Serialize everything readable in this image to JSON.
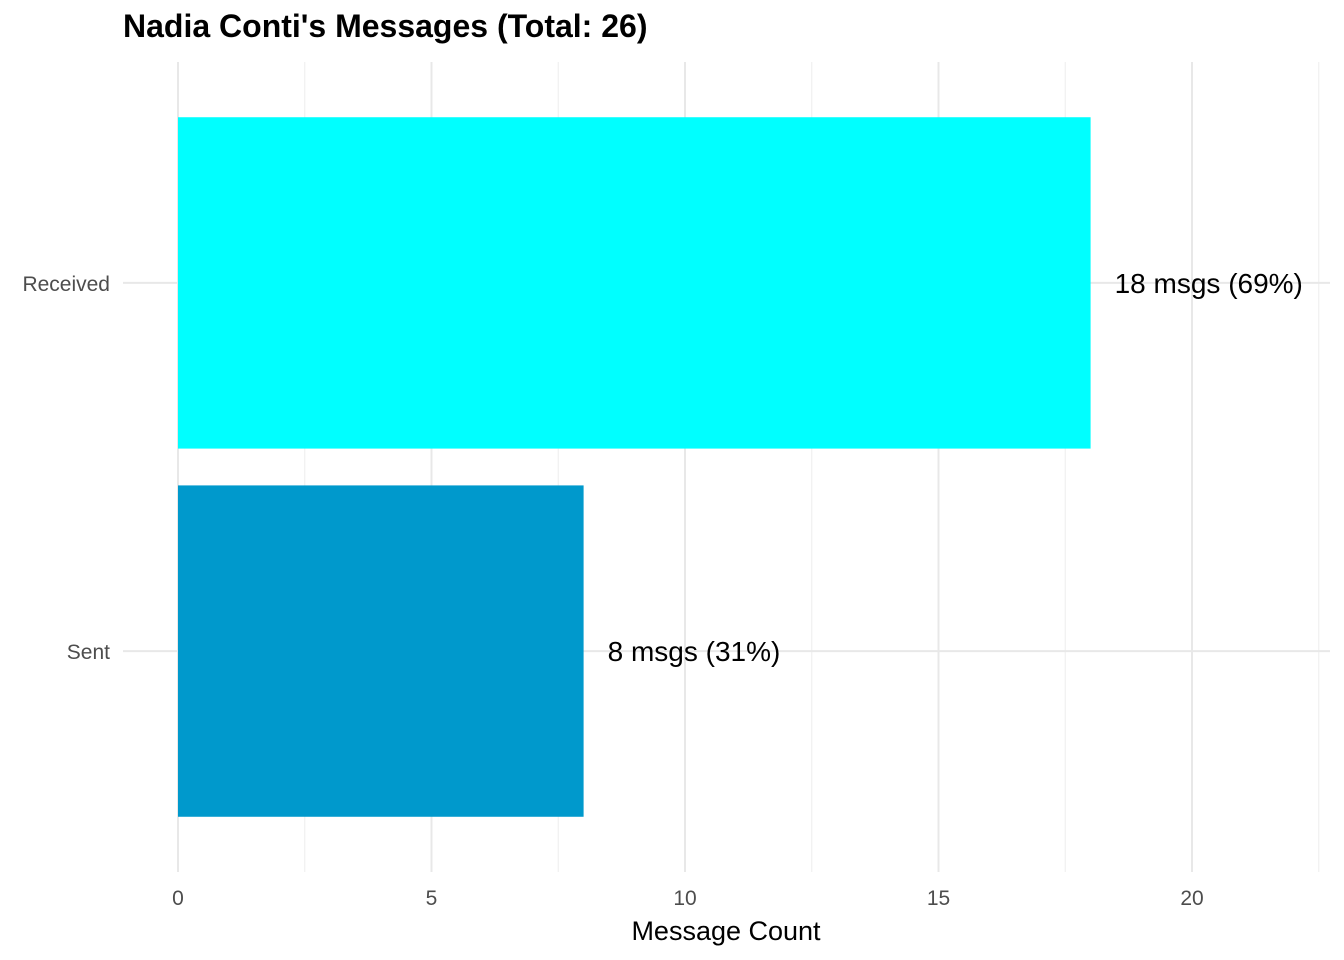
{
  "chart_data": {
    "type": "bar",
    "orientation": "horizontal",
    "title": "Nadia Conti's Messages (Total: 26)",
    "xlabel": "Message Count",
    "ylabel": "",
    "categories": [
      "Received",
      "Sent"
    ],
    "values": [
      18,
      8
    ],
    "data_labels": [
      "18 msgs (69%)",
      "8 msgs (31%)"
    ],
    "colors": [
      "#00FFFF",
      "#0099CC"
    ],
    "xlim": [
      0,
      22.6
    ],
    "xticks": [
      0,
      5,
      10,
      15,
      20
    ],
    "grid": true,
    "legend": "none"
  }
}
